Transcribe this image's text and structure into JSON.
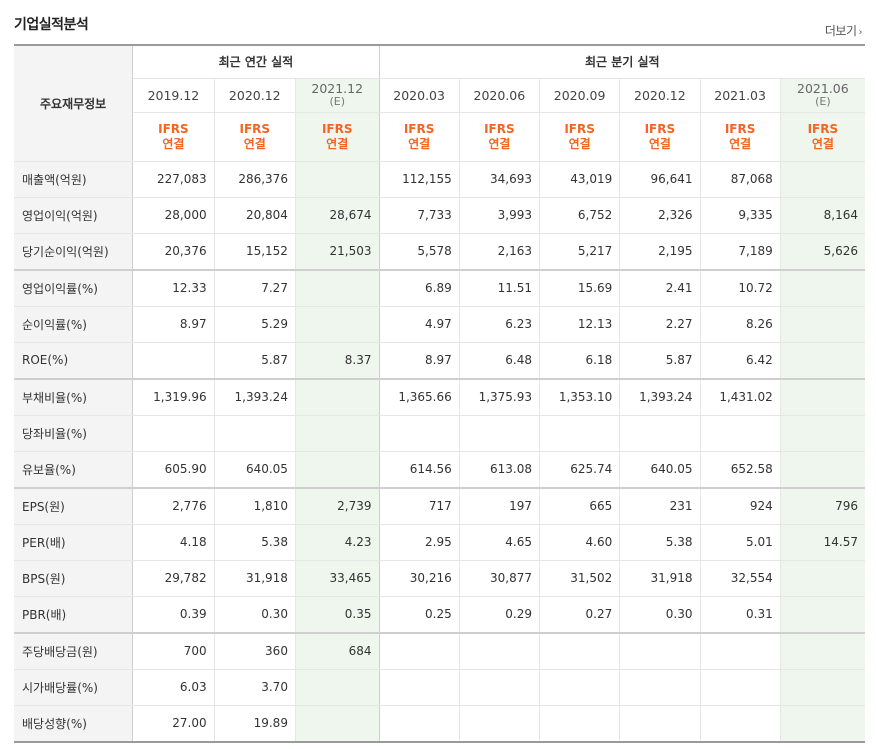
{
  "title": "기업실적분석",
  "more_label": "더보기",
  "header": {
    "row_label": "주요재무정보",
    "annual_group": "최근 연간 실적",
    "quarter_group": "최근 분기 실적",
    "periods": [
      {
        "date": "2019.12",
        "est": ""
      },
      {
        "date": "2020.12",
        "est": ""
      },
      {
        "date": "2021.12",
        "est": "(E)"
      },
      {
        "date": "2020.03",
        "est": ""
      },
      {
        "date": "2020.06",
        "est": ""
      },
      {
        "date": "2020.09",
        "est": ""
      },
      {
        "date": "2020.12",
        "est": ""
      },
      {
        "date": "2021.03",
        "est": ""
      },
      {
        "date": "2021.06",
        "est": "(E)"
      }
    ],
    "ifrs_top": "IFRS",
    "ifrs_bottom": "연결"
  },
  "rows": [
    {
      "label": "매출액(억원)",
      "values": [
        "227,083",
        "286,376",
        "",
        "112,155",
        "34,693",
        "43,019",
        "96,641",
        "87,068",
        ""
      ]
    },
    {
      "label": "영업이익(억원)",
      "values": [
        "28,000",
        "20,804",
        "28,674",
        "7,733",
        "3,993",
        "6,752",
        "2,326",
        "9,335",
        "8,164"
      ]
    },
    {
      "label": "당기순이익(억원)",
      "values": [
        "20,376",
        "15,152",
        "21,503",
        "5,578",
        "2,163",
        "5,217",
        "2,195",
        "7,189",
        "5,626"
      ]
    },
    {
      "label": "영업이익률(%)",
      "values": [
        "12.33",
        "7.27",
        "",
        "6.89",
        "11.51",
        "15.69",
        "2.41",
        "10.72",
        ""
      ]
    },
    {
      "label": "순이익률(%)",
      "values": [
        "8.97",
        "5.29",
        "",
        "4.97",
        "6.23",
        "12.13",
        "2.27",
        "8.26",
        ""
      ]
    },
    {
      "label": "ROE(%)",
      "values": [
        "",
        "5.87",
        "8.37",
        "8.97",
        "6.48",
        "6.18",
        "5.87",
        "6.42",
        ""
      ]
    },
    {
      "label": "부채비율(%)",
      "values": [
        "1,319.96",
        "1,393.24",
        "",
        "1,365.66",
        "1,375.93",
        "1,353.10",
        "1,393.24",
        "1,431.02",
        ""
      ]
    },
    {
      "label": "당좌비율(%)",
      "values": [
        "",
        "",
        "",
        "",
        "",
        "",
        "",
        "",
        ""
      ]
    },
    {
      "label": "유보율(%)",
      "values": [
        "605.90",
        "640.05",
        "",
        "614.56",
        "613.08",
        "625.74",
        "640.05",
        "652.58",
        ""
      ]
    },
    {
      "label": "EPS(원)",
      "values": [
        "2,776",
        "1,810",
        "2,739",
        "717",
        "197",
        "665",
        "231",
        "924",
        "796"
      ]
    },
    {
      "label": "PER(배)",
      "values": [
        "4.18",
        "5.38",
        "4.23",
        "2.95",
        "4.65",
        "4.60",
        "5.38",
        "5.01",
        "14.57"
      ]
    },
    {
      "label": "BPS(원)",
      "values": [
        "29,782",
        "31,918",
        "33,465",
        "30,216",
        "30,877",
        "31,502",
        "31,918",
        "32,554",
        ""
      ]
    },
    {
      "label": "PBR(배)",
      "values": [
        "0.39",
        "0.30",
        "0.35",
        "0.25",
        "0.29",
        "0.27",
        "0.30",
        "0.31",
        ""
      ]
    },
    {
      "label": "주당배당금(원)",
      "values": [
        "700",
        "360",
        "684",
        "",
        "",
        "",
        "",
        "",
        ""
      ]
    },
    {
      "label": "시가배당률(%)",
      "values": [
        "6.03",
        "3.70",
        "",
        "",
        "",
        "",
        "",
        "",
        ""
      ]
    },
    {
      "label": "배당성향(%)",
      "values": [
        "27.00",
        "19.89",
        "",
        "",
        "",
        "",
        "",
        "",
        ""
      ]
    }
  ]
}
